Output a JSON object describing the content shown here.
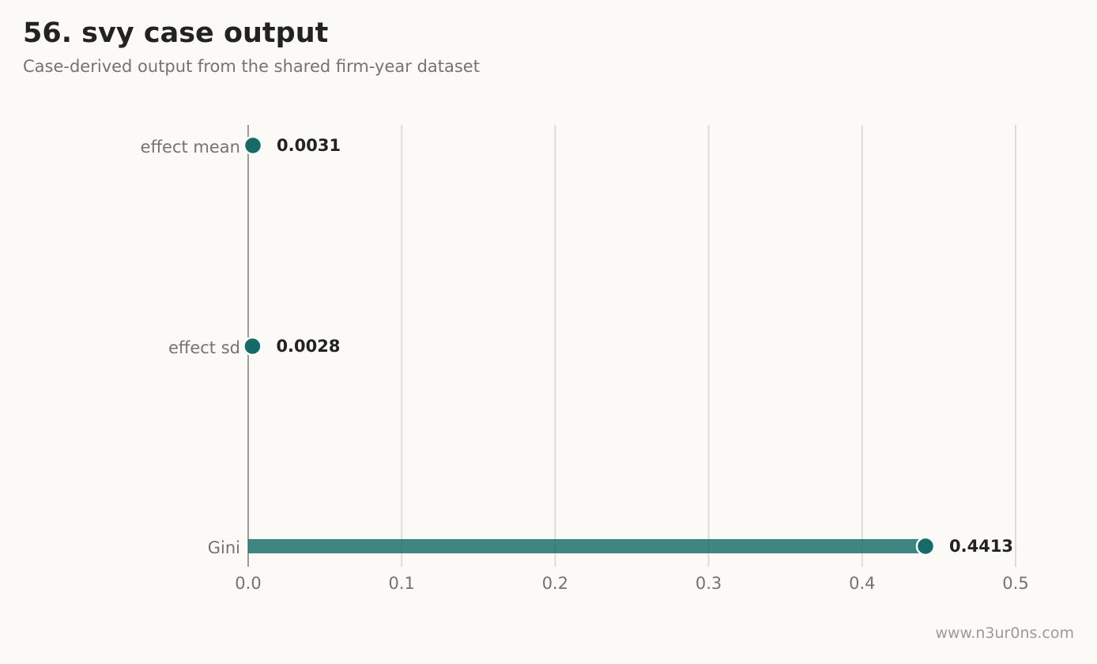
{
  "header": {
    "title": "56. svy case output",
    "subtitle": "Case-derived output from the shared firm-year dataset"
  },
  "footer": {
    "watermark": "www.n3ur0ns.com"
  },
  "colors": {
    "background": "#fbfaf6",
    "accent": "#156b68",
    "grid": "#dcdcd8",
    "axis": "#9c9c98"
  },
  "chart_data": {
    "type": "bar",
    "orientation": "horizontal",
    "style": "lollipop",
    "categories": [
      "effect mean",
      "effect sd",
      "Gini"
    ],
    "values": [
      0.0031,
      0.0028,
      0.4413
    ],
    "value_labels": [
      "0.0031",
      "0.0028",
      "0.4413"
    ],
    "title": "56. svy case output",
    "subtitle": "Case-derived output from the shared firm-year dataset",
    "xlabel": "",
    "ylabel": "",
    "xlim": [
      0,
      0.5
    ],
    "x_ticks": [
      0,
      0.1,
      0.2,
      0.3,
      0.4,
      0.5
    ],
    "x_tick_labels": [
      "0.0",
      "0.1",
      "0.2",
      "0.3",
      "0.4",
      "0.5"
    ],
    "grid": "vertical",
    "legend": "none"
  }
}
